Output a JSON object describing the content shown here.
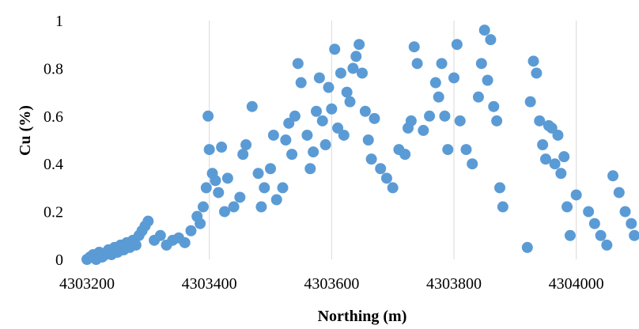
{
  "chart_data": {
    "type": "scatter",
    "title": "",
    "xlabel": "Northing (m)",
    "ylabel": "Cu (%)",
    "xlim": [
      4303200,
      4304100
    ],
    "ylim": [
      0,
      1
    ],
    "xticks": [
      4303200,
      4303400,
      4303600,
      4303800,
      4304000
    ],
    "yticks": [
      0,
      0.2,
      0.4,
      0.6,
      0.8,
      1
    ],
    "xtick_labels": [
      "4303200",
      "4303400",
      "4303600",
      "4303800",
      "4304000"
    ],
    "ytick_labels": [
      "0",
      "0.2",
      "0.4",
      "0.6",
      "0.8",
      "1"
    ],
    "grid": "vertical",
    "legend": "none",
    "marker_color": "#5B9BD5",
    "series": [
      {
        "x": [
          4303200,
          4303205,
          4303210,
          4303215,
          4303220,
          4303225,
          4303230,
          4303235,
          4303240,
          4303245,
          4303250,
          4303255,
          4303260,
          4303265,
          4303270,
          4303275,
          4303280,
          4303285,
          4303290,
          4303295,
          4303300,
          4303310,
          4303320,
          4303330,
          4303340,
          4303350,
          4303360,
          4303370,
          4303380,
          4303385,
          4303390,
          4303395,
          4303398,
          4303400,
          4303405,
          4303410,
          4303415,
          4303420,
          4303425,
          4303430,
          4303440,
          4303450,
          4303455,
          4303460,
          4303470,
          4303480,
          4303485,
          4303490,
          4303500,
          4303505,
          4303510,
          4303520,
          4303525,
          4303530,
          4303535,
          4303540,
          4303545,
          4303550,
          4303560,
          4303565,
          4303570,
          4303575,
          4303580,
          4303585,
          4303590,
          4303595,
          4303600,
          4303605,
          4303610,
          4303615,
          4303620,
          4303625,
          4303630,
          4303635,
          4303640,
          4303645,
          4303650,
          4303655,
          4303660,
          4303665,
          4303670,
          4303680,
          4303690,
          4303700,
          4303710,
          4303720,
          4303725,
          4303730,
          4303735,
          4303740,
          4303750,
          4303760,
          4303770,
          4303775,
          4303780,
          4303785,
          4303790,
          4303800,
          4303805,
          4303810,
          4303820,
          4303830,
          4303840,
          4303845,
          4303850,
          4303855,
          4303860,
          4303865,
          4303870,
          4303875,
          4303880,
          4303920,
          4303925,
          4303930,
          4303935,
          4303940,
          4303945,
          4303950,
          4303955,
          4303960,
          4303965,
          4303970,
          4303975,
          4303980,
          4303985,
          4303990,
          4304000,
          4304020,
          4304030,
          4304040,
          4304050,
          4304060,
          4304070,
          4304080,
          4304090,
          4304095
        ],
        "y": [
          0.0,
          0.01,
          0.02,
          0.0,
          0.03,
          0.01,
          0.02,
          0.04,
          0.02,
          0.05,
          0.03,
          0.06,
          0.04,
          0.07,
          0.05,
          0.08,
          0.06,
          0.1,
          0.12,
          0.14,
          0.16,
          0.08,
          0.1,
          0.06,
          0.08,
          0.09,
          0.07,
          0.12,
          0.18,
          0.15,
          0.22,
          0.3,
          0.6,
          0.46,
          0.36,
          0.33,
          0.28,
          0.47,
          0.2,
          0.34,
          0.22,
          0.26,
          0.44,
          0.48,
          0.64,
          0.36,
          0.22,
          0.3,
          0.38,
          0.52,
          0.25,
          0.3,
          0.5,
          0.57,
          0.44,
          0.6,
          0.82,
          0.74,
          0.52,
          0.38,
          0.45,
          0.62,
          0.76,
          0.58,
          0.48,
          0.72,
          0.63,
          0.88,
          0.55,
          0.78,
          0.52,
          0.7,
          0.66,
          0.8,
          0.85,
          0.9,
          0.78,
          0.62,
          0.5,
          0.42,
          0.59,
          0.38,
          0.34,
          0.3,
          0.46,
          0.44,
          0.55,
          0.58,
          0.89,
          0.82,
          0.54,
          0.6,
          0.74,
          0.68,
          0.82,
          0.6,
          0.46,
          0.76,
          0.9,
          0.58,
          0.46,
          0.4,
          0.68,
          0.82,
          0.96,
          0.75,
          0.92,
          0.64,
          0.58,
          0.3,
          0.22,
          0.05,
          0.66,
          0.83,
          0.78,
          0.58,
          0.48,
          0.42,
          0.56,
          0.55,
          0.4,
          0.52,
          0.36,
          0.43,
          0.22,
          0.1,
          0.27,
          0.2,
          0.15,
          0.1,
          0.06,
          0.35,
          0.28,
          0.2,
          0.15,
          0.1
        ]
      }
    ]
  }
}
